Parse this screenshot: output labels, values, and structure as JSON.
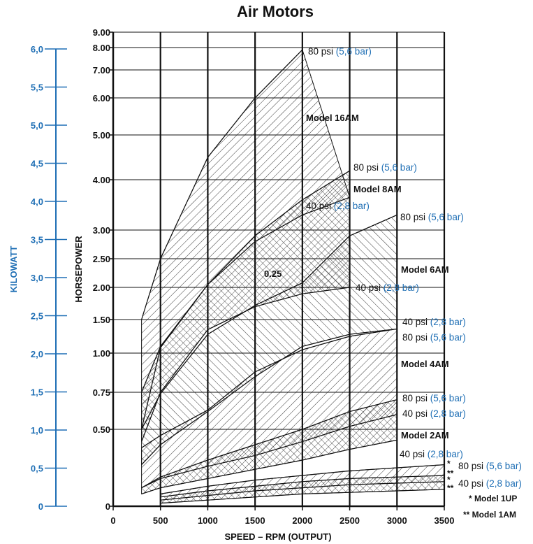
{
  "chart_data": {
    "type": "area",
    "title": "Air Motors",
    "xlabel": "SPEED – RPM (OUTPUT)",
    "ylabel": "HORSEPOWER",
    "y2label": "KILOWATT",
    "x_ticks": [
      "0",
      "500",
      "1000",
      "1500",
      "2000",
      "2500",
      "3000",
      "3500"
    ],
    "x_tick_values": [
      0,
      500,
      1000,
      1500,
      2000,
      2500,
      3000,
      3500
    ],
    "y_ticks": [
      {
        "v": 0,
        "label": "0"
      },
      {
        "v": 0.5,
        "label": "0.50"
      },
      {
        "v": 0.75,
        "label": "0.75"
      },
      {
        "v": 1.0,
        "label": "1.00"
      },
      {
        "v": 1.5,
        "label": "1.50"
      },
      {
        "v": 2.0,
        "label": "2.00"
      },
      {
        "v": 2.5,
        "label": "2.50"
      },
      {
        "v": 3.0,
        "label": "3.00"
      },
      {
        "v": 4.0,
        "label": "4.00"
      },
      {
        "v": 5.0,
        "label": "5.00"
      },
      {
        "v": 6.0,
        "label": "6.00"
      },
      {
        "v": 7.0,
        "label": "7.00"
      },
      {
        "v": 8.0,
        "label": "8.00"
      },
      {
        "v": 9.0,
        "label": "9.00"
      }
    ],
    "kw_ticks": [
      "0",
      "0,5",
      "1,0",
      "1,5",
      "2,0",
      "2,5",
      "3,0",
      "3,5",
      "4,0",
      "4,5",
      "5,0",
      "5,5",
      "6,0"
    ],
    "xlim": [
      0,
      3500
    ],
    "ylim": [
      0,
      9
    ],
    "grid": true,
    "series": [
      {
        "name": "Model 16AM",
        "model_label": "Model 16AM",
        "hatch": "forward",
        "upper_label": "80 psi",
        "upper_bar": "(5,6 bar)",
        "upper": [
          [
            300,
            1.5
          ],
          [
            500,
            2.5
          ],
          [
            1000,
            4.5
          ],
          [
            1500,
            6.0
          ],
          [
            2000,
            7.9
          ]
        ],
        "lower": [
          [
            300,
            0.5
          ],
          [
            500,
            1.08
          ],
          [
            1000,
            2.05
          ],
          [
            1500,
            2.8
          ],
          [
            2000,
            3.3
          ],
          [
            2500,
            3.65
          ]
        ]
      },
      {
        "name": "Model 8AM",
        "model_label": "Model 8AM",
        "hatch": "cross",
        "upper_label": "80 psi",
        "upper_bar": "(5,6 bar)",
        "lower_label": "40 psi",
        "lower_bar": "(2,8 bar)",
        "upper": [
          [
            300,
            0.75
          ],
          [
            500,
            1.1
          ],
          [
            1000,
            2.05
          ],
          [
            1500,
            2.9
          ],
          [
            2000,
            3.6
          ],
          [
            2500,
            4.2
          ]
        ],
        "lower": [
          [
            300,
            0.42
          ],
          [
            500,
            0.75
          ],
          [
            1000,
            1.35
          ],
          [
            1500,
            1.7
          ],
          [
            2000,
            1.9
          ],
          [
            2500,
            2.0
          ]
        ]
      },
      {
        "name": "Model 6AM",
        "model_label": "Model 6AM",
        "hatch": "back",
        "upper_label": "80 psi",
        "upper_bar": "(5,6 bar)",
        "lower_label": "40 psi",
        "lower_bar": "(2,8 bar)",
        "upper": [
          [
            300,
            0.5
          ],
          [
            500,
            0.74
          ],
          [
            1000,
            1.28
          ],
          [
            1500,
            1.72
          ],
          [
            2000,
            2.08
          ],
          [
            2500,
            2.9
          ],
          [
            3000,
            3.3
          ]
        ],
        "lower": [
          [
            300,
            0.27
          ],
          [
            500,
            0.4
          ],
          [
            1000,
            0.62
          ],
          [
            1500,
            0.85
          ],
          [
            2000,
            1.1
          ],
          [
            2500,
            1.28
          ],
          [
            3000,
            1.36
          ]
        ]
      },
      {
        "name": "Model 4AM",
        "model_label": "Model 4AM",
        "hatch": "forward",
        "upper_label": "80 psi",
        "upper_bar": "(5,6 bar)",
        "lower_label": "40 psi",
        "lower_bar": "(2,8 bar)",
        "upper": [
          [
            300,
            0.38
          ],
          [
            500,
            0.46
          ],
          [
            1000,
            0.63
          ],
          [
            1500,
            0.88
          ],
          [
            2000,
            1.05
          ],
          [
            2500,
            1.25
          ],
          [
            3000,
            1.36
          ]
        ],
        "lower": [
          [
            300,
            0.12
          ],
          [
            500,
            0.18
          ],
          [
            1000,
            0.26
          ],
          [
            1500,
            0.33
          ],
          [
            2000,
            0.42
          ],
          [
            2500,
            0.52
          ],
          [
            3000,
            0.6
          ]
        ]
      },
      {
        "name": "Model 2AM",
        "model_label": "Model 2AM",
        "hatch": "cross",
        "upper_label": "80 psi",
        "upper_bar": "(5,6 bar)",
        "lower_label": "40 psi",
        "lower_bar": "(2,8 bar)",
        "upper": [
          [
            300,
            0.12
          ],
          [
            500,
            0.19
          ],
          [
            1000,
            0.3
          ],
          [
            1500,
            0.4
          ],
          [
            2000,
            0.5
          ],
          [
            2500,
            0.62
          ],
          [
            3000,
            0.7
          ]
        ],
        "lower": [
          [
            300,
            0.08
          ],
          [
            500,
            0.12
          ],
          [
            1000,
            0.18
          ],
          [
            1500,
            0.24
          ],
          [
            2000,
            0.3
          ],
          [
            2500,
            0.37
          ],
          [
            3000,
            0.43
          ]
        ]
      },
      {
        "name": "Model 1UP",
        "model_label": "Model 1UP",
        "hatch": "forward",
        "upper": [
          [
            500,
            0.08
          ],
          [
            1000,
            0.13
          ],
          [
            1500,
            0.17
          ],
          [
            2000,
            0.2
          ],
          [
            2500,
            0.23
          ],
          [
            3000,
            0.25
          ],
          [
            3500,
            0.27
          ]
        ],
        "lower": [
          [
            500,
            0.04
          ],
          [
            1000,
            0.07
          ],
          [
            1500,
            0.1
          ],
          [
            2000,
            0.12
          ],
          [
            2500,
            0.14
          ],
          [
            3000,
            0.15
          ],
          [
            3500,
            0.16
          ]
        ]
      },
      {
        "name": "Model 1AM",
        "model_label": "Model 1AM",
        "hatch": "cross",
        "upper": [
          [
            500,
            0.06
          ],
          [
            1000,
            0.1
          ],
          [
            1500,
            0.13
          ],
          [
            2000,
            0.16
          ],
          [
            2500,
            0.18
          ],
          [
            3000,
            0.19
          ],
          [
            3500,
            0.2
          ]
        ],
        "lower": [
          [
            500,
            0.02
          ],
          [
            1000,
            0.04
          ],
          [
            1500,
            0.06
          ],
          [
            2000,
            0.08
          ],
          [
            2500,
            0.09
          ],
          [
            3000,
            0.1
          ],
          [
            3500,
            0.11
          ]
        ]
      }
    ],
    "annotations": [
      {
        "text": "0.25"
      },
      {
        "text": "40 psi",
        "bar": "(2,8 bar)"
      }
    ],
    "notes": [
      {
        "text": "* Model 1UP"
      },
      {
        "text": "** Model 1AM"
      }
    ],
    "markers": [
      "*",
      "**",
      "*",
      "**"
    ]
  }
}
